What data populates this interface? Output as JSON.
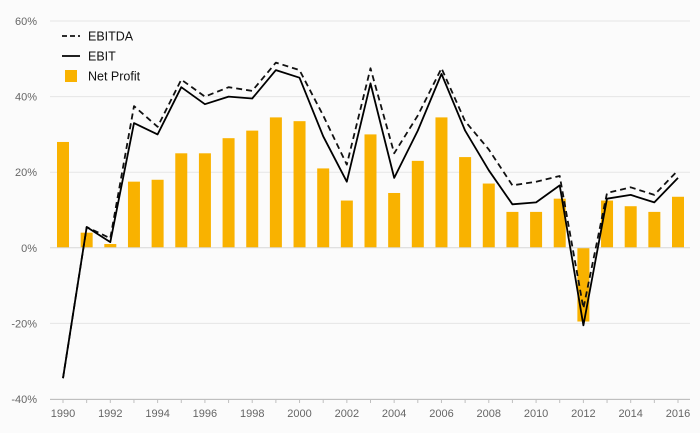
{
  "chart_data": {
    "type": "bar",
    "x": [
      1990,
      1991,
      1992,
      1993,
      1994,
      1995,
      1996,
      1997,
      1998,
      1999,
      2000,
      2001,
      2002,
      2003,
      2004,
      2005,
      2006,
      2007,
      2008,
      2009,
      2010,
      2011,
      2012,
      2013,
      2014,
      2015,
      2016
    ],
    "x_tick_labels": [
      "1990",
      "1992",
      "1994",
      "1996",
      "1998",
      "2000",
      "2002",
      "2004",
      "2006",
      "2008",
      "2010",
      "2012",
      "2014",
      "2016"
    ],
    "series": [
      {
        "name": "EBITDA",
        "type": "line",
        "style": "dashed",
        "color": "#111111",
        "values": [
          -34.5,
          5.5,
          2.5,
          37.5,
          32,
          44.5,
          40,
          42.5,
          41.5,
          49,
          47,
          35,
          22,
          47.5,
          25,
          35,
          47.5,
          33.5,
          26,
          16.5,
          17.5,
          19,
          -16,
          14.5,
          16,
          14,
          20.5
        ]
      },
      {
        "name": "EBIT",
        "type": "line",
        "style": "solid",
        "color": "#000000",
        "values": [
          -34.5,
          5.5,
          1.5,
          33,
          30,
          42.5,
          38,
          40,
          39.5,
          47,
          45,
          29.5,
          17.5,
          43.5,
          18.5,
          31,
          46,
          31,
          20.5,
          11.5,
          12,
          16.5,
          -20.5,
          13,
          14,
          12,
          18.5
        ]
      },
      {
        "name": "Net Profit",
        "type": "bar",
        "color": "#f9b200",
        "values": [
          28,
          4,
          1,
          17.5,
          18,
          25,
          25,
          29,
          31,
          34.5,
          33.5,
          21,
          12.5,
          30,
          14.5,
          23,
          34.5,
          24,
          17,
          9.5,
          9.5,
          13,
          -19.5,
          12.5,
          11,
          9.5,
          13.5
        ]
      }
    ],
    "y_ticks": [
      "-40%",
      "-20%",
      "0%",
      "20%",
      "40%",
      "60%"
    ],
    "ylim": [
      -40,
      60
    ],
    "y_unit": "%",
    "grid": true,
    "legend_position": "top-left",
    "title": "",
    "xlabel": "",
    "ylabel": ""
  }
}
